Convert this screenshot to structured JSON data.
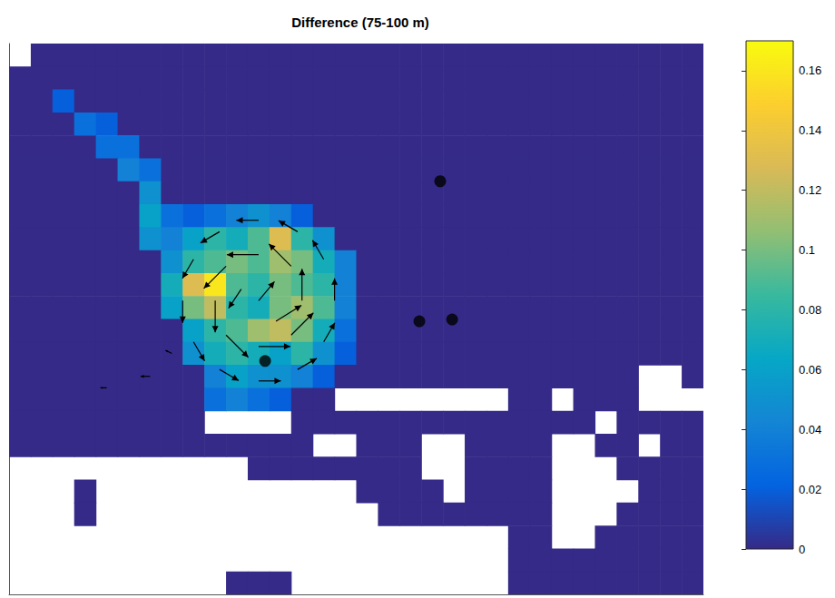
{
  "chart_data": {
    "type": "heatmap",
    "title": "Difference (75-100 m)",
    "tick_labels": false,
    "xlim": [
      -0.5,
      31.5
    ],
    "ylim": [
      -0.5,
      23.5
    ],
    "x": [
      0,
      1,
      2,
      3,
      4,
      5,
      6,
      7,
      8,
      9,
      10,
      11,
      12,
      13,
      14,
      15,
      16,
      17,
      18,
      19,
      20,
      21,
      22,
      23,
      24,
      25,
      26,
      27,
      28,
      29,
      30,
      31
    ],
    "y": [
      23,
      22,
      21,
      20,
      19,
      18,
      17,
      16,
      15,
      14,
      13,
      12,
      11,
      10,
      9,
      8,
      7,
      6,
      5,
      4,
      3,
      2,
      1,
      0
    ],
    "cells": [
      [
        null,
        0,
        0,
        0,
        0,
        0,
        0,
        0,
        0,
        0,
        0,
        0,
        0,
        0,
        0,
        0,
        0,
        0,
        0,
        0,
        0,
        0,
        0,
        0,
        0,
        0,
        0,
        0,
        0,
        0,
        0,
        0
      ],
      [
        0,
        0,
        0,
        0,
        0,
        0,
        0,
        0,
        0,
        0,
        0,
        0,
        0,
        0,
        0,
        0,
        0,
        0,
        0,
        0,
        0,
        0,
        0,
        0,
        0,
        0,
        0,
        0,
        0,
        0,
        0,
        0
      ],
      [
        0,
        0,
        0.02,
        0,
        0,
        0,
        0,
        0,
        0,
        0,
        0,
        0,
        0,
        0,
        0,
        0,
        0,
        0,
        0,
        0,
        0,
        0,
        0,
        0,
        0,
        0,
        0,
        0,
        0,
        0,
        0,
        0
      ],
      [
        0,
        0,
        0,
        0.03,
        0.02,
        0,
        0,
        0,
        0,
        0,
        0,
        0,
        0,
        0,
        0,
        0,
        0,
        0,
        0,
        0,
        0,
        0,
        0,
        0,
        0,
        0,
        0,
        0,
        0,
        0,
        0,
        0
      ],
      [
        0,
        0,
        0,
        0,
        0.03,
        0.03,
        0,
        0,
        0,
        0,
        0,
        0,
        0,
        0,
        0,
        0,
        0,
        0,
        0,
        0,
        0,
        0,
        0,
        0,
        0,
        0,
        0,
        0,
        0,
        0,
        0,
        0
      ],
      [
        0,
        0,
        0,
        0,
        0,
        0.04,
        0.03,
        0,
        0,
        0,
        0,
        0,
        0,
        0,
        0,
        0,
        0,
        0,
        0,
        0,
        0,
        0,
        0,
        0,
        0,
        0,
        0,
        0,
        0,
        0,
        0,
        0
      ],
      [
        0,
        0,
        0,
        0,
        0,
        0,
        0.05,
        0,
        0,
        0,
        0,
        0,
        0,
        0,
        0,
        0,
        0,
        0,
        0,
        0,
        0,
        0,
        0,
        0,
        0,
        0,
        0,
        0,
        0,
        0,
        0,
        0
      ],
      [
        0,
        0,
        0,
        0,
        0,
        0,
        0.06,
        0.03,
        0.02,
        0.03,
        0.04,
        0.05,
        0.04,
        0.02,
        0,
        0,
        0,
        0,
        0,
        0,
        0,
        0,
        0,
        0,
        0,
        0,
        0,
        0,
        0,
        0,
        0,
        0
      ],
      [
        0,
        0,
        0,
        0,
        0,
        0,
        0.05,
        0.04,
        0.06,
        0.08,
        0.07,
        0.09,
        0.13,
        0.08,
        0.05,
        0,
        0,
        0,
        0,
        0,
        0,
        0,
        0,
        0,
        0,
        0,
        0,
        0,
        0,
        0,
        0,
        0
      ],
      [
        0,
        0,
        0,
        0,
        0,
        0,
        0,
        0.05,
        0.08,
        0.09,
        0.1,
        0.09,
        0.11,
        0.1,
        0.07,
        0.04,
        0,
        0,
        0,
        0,
        0,
        0,
        0,
        0,
        0,
        0,
        0,
        0,
        0,
        0,
        0,
        0
      ],
      [
        0,
        0,
        0,
        0,
        0,
        0,
        0,
        0.07,
        0.13,
        0.16,
        0.09,
        0.08,
        0.1,
        0.09,
        0.08,
        0.04,
        0,
        0,
        0,
        0,
        0,
        0,
        0,
        0,
        0,
        0,
        0,
        0,
        0,
        0,
        0,
        0
      ],
      [
        0,
        0,
        0,
        0,
        0,
        0,
        0,
        0.06,
        0.1,
        0.12,
        0.08,
        0.07,
        0.1,
        0.11,
        0.09,
        0.04,
        0,
        0,
        0,
        0,
        0,
        0,
        0,
        0,
        0,
        0,
        0,
        0,
        0,
        0,
        0,
        0
      ],
      [
        0,
        0,
        0,
        0,
        0,
        0,
        0,
        0,
        0.06,
        0.08,
        0.09,
        0.11,
        0.12,
        0.1,
        0.07,
        0.03,
        0,
        0,
        0,
        0,
        0,
        0,
        0,
        0,
        0,
        0,
        0,
        0,
        0,
        0,
        0,
        0
      ],
      [
        0,
        0,
        0,
        0,
        0,
        0,
        0,
        0,
        0.05,
        0.07,
        0.08,
        0.07,
        0.06,
        0.08,
        0.05,
        0.02,
        0,
        0,
        0,
        0,
        0,
        0,
        0,
        0,
        0,
        0,
        0,
        0,
        0,
        0,
        0,
        0
      ],
      [
        0,
        0,
        0,
        0,
        0,
        0,
        0,
        0,
        0,
        0.04,
        0.06,
        0.05,
        0.05,
        0.04,
        0.02,
        0,
        0,
        0,
        0,
        0,
        0,
        0,
        0,
        0,
        0,
        0,
        0,
        0,
        0,
        null,
        null,
        0
      ],
      [
        0,
        0,
        0,
        0,
        0,
        0,
        0,
        0,
        0,
        0.03,
        0.04,
        0.03,
        0.02,
        0,
        0,
        null,
        null,
        null,
        null,
        null,
        null,
        null,
        null,
        0,
        0,
        null,
        0,
        0,
        0,
        null,
        null,
        null
      ],
      [
        0,
        0,
        0,
        0,
        0,
        0,
        0,
        0,
        0,
        null,
        null,
        null,
        null,
        0,
        0,
        0,
        0,
        0,
        0,
        0,
        0,
        0,
        0,
        0,
        0,
        0,
        0,
        null,
        0,
        0,
        0,
        0
      ],
      [
        0,
        0,
        0,
        0,
        0,
        0,
        0,
        0,
        0,
        0,
        0,
        0,
        0,
        0,
        null,
        null,
        0,
        0,
        0,
        null,
        null,
        0,
        0,
        0,
        0,
        null,
        null,
        0,
        0,
        null,
        0,
        0
      ],
      [
        null,
        null,
        null,
        null,
        null,
        null,
        null,
        null,
        null,
        null,
        null,
        0,
        0,
        0,
        0,
        0,
        0,
        0,
        0,
        null,
        null,
        0,
        0,
        0,
        0,
        null,
        null,
        null,
        0,
        0,
        0,
        0
      ],
      [
        null,
        null,
        null,
        0,
        null,
        null,
        null,
        null,
        null,
        null,
        null,
        null,
        null,
        null,
        null,
        null,
        0,
        0,
        0,
        0,
        null,
        0,
        0,
        0,
        0,
        null,
        null,
        null,
        null,
        0,
        0,
        0
      ],
      [
        null,
        null,
        null,
        0,
        null,
        null,
        null,
        null,
        null,
        null,
        null,
        null,
        null,
        null,
        null,
        null,
        null,
        0,
        0,
        0,
        0,
        0,
        0,
        0,
        0,
        null,
        null,
        null,
        0,
        0,
        0,
        0
      ],
      [
        null,
        null,
        null,
        null,
        null,
        null,
        null,
        null,
        null,
        null,
        null,
        null,
        null,
        null,
        null,
        null,
        null,
        null,
        null,
        null,
        null,
        null,
        null,
        0,
        0,
        null,
        null,
        0,
        0,
        0,
        0,
        0
      ],
      [
        null,
        null,
        null,
        null,
        null,
        null,
        null,
        null,
        null,
        null,
        null,
        null,
        null,
        null,
        null,
        null,
        null,
        null,
        null,
        null,
        null,
        null,
        null,
        0,
        0,
        0,
        0,
        0,
        0,
        0,
        0,
        0
      ],
      [
        null,
        null,
        null,
        null,
        null,
        null,
        null,
        null,
        null,
        null,
        0,
        0,
        0,
        null,
        null,
        null,
        null,
        null,
        null,
        null,
        null,
        null,
        null,
        0,
        0,
        0,
        0,
        0,
        0,
        0,
        0,
        0
      ]
    ],
    "colors": [
      "#352a87",
      "#0363e1",
      "#1485d4",
      "#06a7c6",
      "#38b99e",
      "#92bf73",
      "#d9ba56",
      "#fcce2e",
      "#f9fb0e"
    ],
    "colorbar": {
      "range": [
        0,
        0.17
      ],
      "ticks": [
        0,
        0.02,
        0.04,
        0.06,
        0.08,
        0.1,
        0.12,
        0.14,
        0.16
      ]
    },
    "arrows": {
      "color": "#000000",
      "x": [
        13,
        11,
        9,
        11,
        12.5,
        9.5,
        9.5,
        12.5,
        14.5,
        14,
        12.8,
        11,
        9.2,
        8,
        7.5,
        8,
        9.2,
        11,
        12.8,
        14,
        11,
        11.8,
        10.2,
        6,
        7,
        4
      ],
      "y": [
        12.3,
        14.3,
        12.3,
        10.3,
        13.8,
        13.8,
        10.8,
        10.8,
        12.3,
        14.1,
        15.3,
        15.8,
        15.3,
        14.1,
        12.3,
        10.5,
        9.3,
        8.8,
        9.3,
        10.5,
        12.3,
        11.4,
        12.8,
        9,
        10,
        8.5
      ],
      "u": [
        0,
        -0.1,
        0,
        0.1,
        -0.07,
        -0.07,
        0.07,
        0.07,
        0,
        -0.035,
        -0.06,
        -0.07,
        -0.06,
        -0.035,
        0,
        0.035,
        0.06,
        0.07,
        0.06,
        0.035,
        0.05,
        0.08,
        -0.04,
        -0.03,
        -0.02,
        -0.02
      ],
      "v": [
        0.1,
        0,
        -0.1,
        0,
        0.07,
        -0.07,
        -0.07,
        0.07,
        0.07,
        0.06,
        0.035,
        0,
        -0.035,
        -0.06,
        -0.07,
        -0.06,
        -0.035,
        0,
        0.035,
        0.06,
        0.06,
        0.05,
        -0.06,
        0,
        0.01,
        0
      ]
    },
    "points": {
      "color": "#000000",
      "x": [
        19.37,
        18.41,
        19.92,
        11.3
      ],
      "y": [
        17.5,
        11.4,
        11.48,
        9.67
      ]
    }
  }
}
